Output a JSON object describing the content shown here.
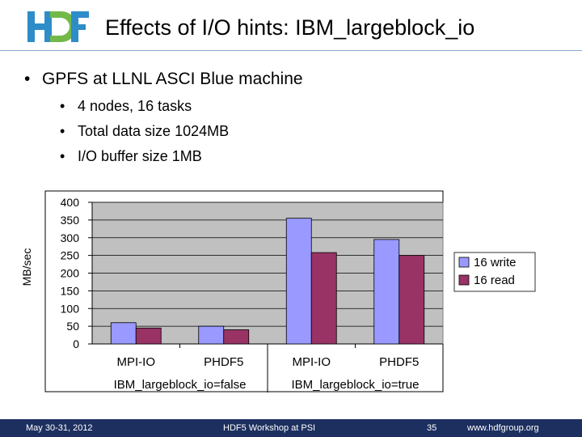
{
  "header": {
    "title": "Effects of I/O hints: IBM_largeblock_io",
    "logo": {
      "icon": "hdf-logo-icon",
      "colors": {
        "h": "#2e8dc8",
        "d": "#72b94a",
        "f": "#2e8dc8"
      }
    }
  },
  "bullets": {
    "main": "GPFS at LLNL ASCI Blue machine",
    "sub": [
      "4 nodes, 16 tasks",
      "Total data size 1024MB",
      "I/O buffer size 1MB"
    ]
  },
  "chart_data": {
    "type": "bar",
    "ylabel": "MB/sec",
    "ylim": [
      0,
      400
    ],
    "yticks": [
      0,
      50,
      100,
      150,
      200,
      250,
      300,
      350,
      400
    ],
    "categories": [
      "MPI-IO",
      "PHDF5",
      "MPI-IO",
      "PHDF5"
    ],
    "groups": [
      {
        "label": "IBM_largeblock_io=false",
        "span": 2
      },
      {
        "label": "IBM_largeblock_io=true",
        "span": 2
      }
    ],
    "series": [
      {
        "name": "16 write",
        "values": [
          60,
          50,
          355,
          295
        ],
        "color": "#9999ff"
      },
      {
        "name": "16 read",
        "values": [
          45,
          40,
          258,
          250
        ],
        "color": "#993366"
      }
    ],
    "plot_background": "#c0c0c0",
    "legend": "right"
  },
  "footer": {
    "date": "May 30-31, 2012",
    "event": "HDF5 Workshop at PSI",
    "page": "35",
    "url": "www.hdfgroup.org"
  }
}
